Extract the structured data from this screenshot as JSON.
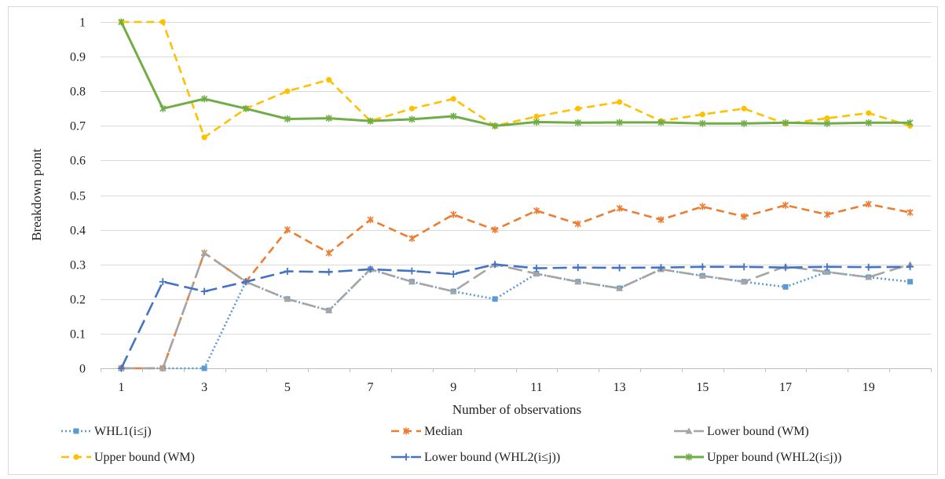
{
  "chart_data": {
    "type": "line",
    "title": "",
    "xlabel": "Number of observations",
    "ylabel": "Breakdown point",
    "x": [
      1,
      2,
      3,
      4,
      5,
      6,
      7,
      8,
      9,
      10,
      11,
      12,
      13,
      14,
      15,
      16,
      17,
      18,
      19,
      20
    ],
    "x_ticks": [
      1,
      3,
      5,
      7,
      9,
      11,
      13,
      15,
      17,
      19
    ],
    "y_ticks": [
      0,
      0.1,
      0.2,
      0.3,
      0.4,
      0.5,
      0.6,
      0.7,
      0.8,
      0.9,
      1
    ],
    "xlim": [
      1,
      20
    ],
    "ylim": [
      0,
      1
    ],
    "grid": "horizontal",
    "legend_position": "bottom",
    "series": [
      {
        "name": "WHL1(i≤j)",
        "color": "#5b9bd5",
        "line_style": "dotted",
        "marker": "square",
        "values": [
          0,
          0,
          0,
          0.25,
          0.2,
          0.167,
          0.286,
          0.25,
          0.222,
          0.2,
          0.273,
          0.25,
          0.231,
          0.286,
          0.267,
          0.25,
          0.235,
          0.278,
          0.263,
          0.25
        ]
      },
      {
        "name": "Median",
        "color": "#ed7d31",
        "line_style": "dashed",
        "marker": "star",
        "values": [
          0,
          0,
          0.333,
          0.25,
          0.4,
          0.333,
          0.429,
          0.375,
          0.444,
          0.4,
          0.455,
          0.417,
          0.462,
          0.429,
          0.467,
          0.438,
          0.471,
          0.444,
          0.474,
          0.45
        ]
      },
      {
        "name": "Lower bound (WM)",
        "color": "#a5a5a5",
        "line_style": "longdash",
        "marker": "triangle",
        "values": [
          0,
          0,
          0.333,
          0.25,
          0.2,
          0.167,
          0.286,
          0.25,
          0.222,
          0.3,
          0.273,
          0.25,
          0.231,
          0.286,
          0.267,
          0.25,
          0.294,
          0.278,
          0.263,
          0.3
        ]
      },
      {
        "name": "Upper bound (WM)",
        "color": "#ffc000",
        "line_style": "dashed",
        "marker": "circle",
        "values": [
          1,
          1,
          0.667,
          0.75,
          0.8,
          0.833,
          0.714,
          0.75,
          0.778,
          0.7,
          0.727,
          0.75,
          0.769,
          0.714,
          0.733,
          0.75,
          0.706,
          0.722,
          0.737,
          0.7
        ]
      },
      {
        "name": "Lower bound (WHL2(i≤j))",
        "color": "#4472c4",
        "line_style": "longdash",
        "marker": "plus",
        "values": [
          0,
          0.25,
          0.222,
          0.25,
          0.28,
          0.278,
          0.286,
          0.281,
          0.272,
          0.3,
          0.289,
          0.291,
          0.29,
          0.291,
          0.293,
          0.293,
          0.291,
          0.293,
          0.292,
          0.293
        ]
      },
      {
        "name": "Upper bound (WHL2(i≤j))",
        "color": "#70ad47",
        "line_style": "solid",
        "marker": "star",
        "values": [
          1,
          0.75,
          0.778,
          0.75,
          0.72,
          0.722,
          0.714,
          0.719,
          0.728,
          0.7,
          0.711,
          0.709,
          0.71,
          0.71,
          0.707,
          0.707,
          0.709,
          0.707,
          0.709,
          0.709
        ]
      }
    ]
  }
}
